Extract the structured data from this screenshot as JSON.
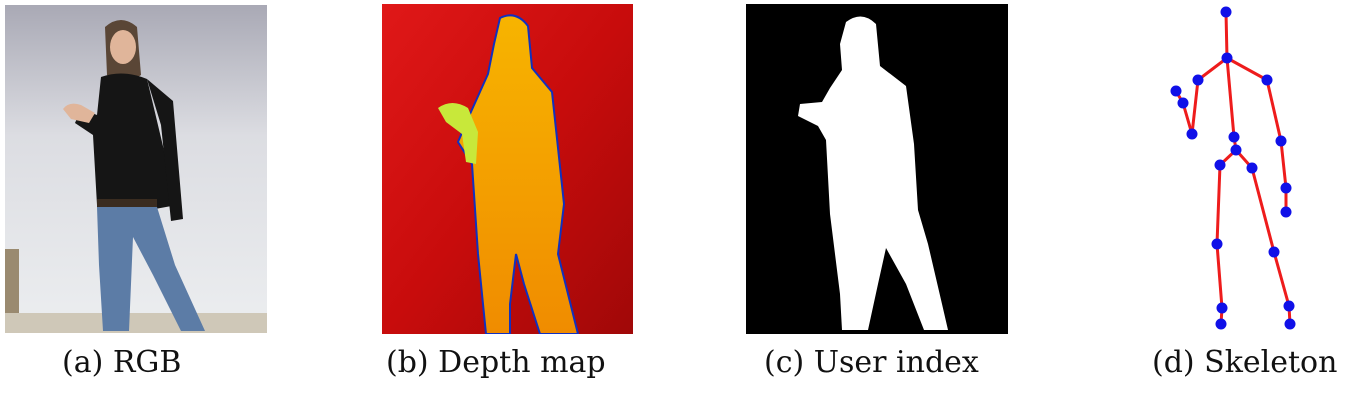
{
  "figure": {
    "panels": [
      {
        "id": "a",
        "caption": "(a) RGB"
      },
      {
        "id": "b",
        "caption": "(b) Depth map"
      },
      {
        "id": "c",
        "caption": "(c) User index"
      },
      {
        "id": "d",
        "caption": "(d) Skeleton"
      }
    ]
  },
  "colors": {
    "depth_background": "#d01010",
    "depth_body": "#f5a300",
    "depth_hand": "#c8e83a",
    "depth_edge": "#1030c0",
    "mask_background": "#000000",
    "mask_body": "#ffffff",
    "skeleton_bone": "#ee1c1c",
    "skeleton_joint": "#1010e8"
  }
}
